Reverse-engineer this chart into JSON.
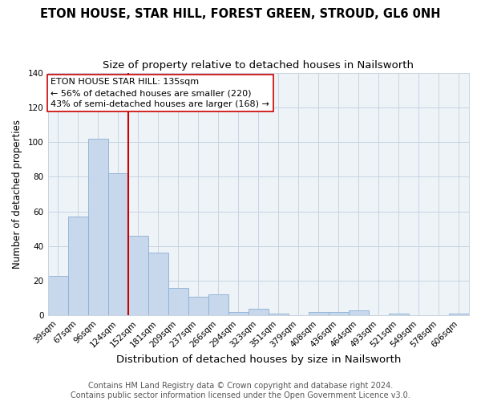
{
  "title": "ETON HOUSE, STAR HILL, FOREST GREEN, STROUD, GL6 0NH",
  "subtitle": "Size of property relative to detached houses in Nailsworth",
  "xlabel": "Distribution of detached houses by size in Nailsworth",
  "ylabel": "Number of detached properties",
  "bar_labels": [
    "39sqm",
    "67sqm",
    "96sqm",
    "124sqm",
    "152sqm",
    "181sqm",
    "209sqm",
    "237sqm",
    "266sqm",
    "294sqm",
    "323sqm",
    "351sqm",
    "379sqm",
    "408sqm",
    "436sqm",
    "464sqm",
    "493sqm",
    "521sqm",
    "549sqm",
    "578sqm",
    "606sqm"
  ],
  "bar_heights": [
    23,
    57,
    102,
    82,
    46,
    36,
    16,
    11,
    12,
    2,
    4,
    1,
    0,
    2,
    2,
    3,
    0,
    1,
    0,
    0,
    1
  ],
  "bar_color": "#c8d8ec",
  "bar_edge_color": "#8bafd4",
  "vline_x": 3.5,
  "vline_color": "#cc0000",
  "ylim": [
    0,
    140
  ],
  "annotation_title": "ETON HOUSE STAR HILL: 135sqm",
  "annotation_line1": "← 56% of detached houses are smaller (220)",
  "annotation_line2": "43% of semi-detached houses are larger (168) →",
  "annotation_box_facecolor": "#ffffff",
  "annotation_box_edgecolor": "#cc0000",
  "footer_line1": "Contains HM Land Registry data © Crown copyright and database right 2024.",
  "footer_line2": "Contains public sector information licensed under the Open Government Licence v3.0.",
  "bg_color": "#ffffff",
  "plot_bg_color": "#eef3f8",
  "grid_color": "#c8d4e0",
  "title_fontsize": 10.5,
  "subtitle_fontsize": 9.5,
  "xlabel_fontsize": 9.5,
  "ylabel_fontsize": 8.5,
  "tick_fontsize": 7.5,
  "annotation_fontsize": 8,
  "footer_fontsize": 7
}
